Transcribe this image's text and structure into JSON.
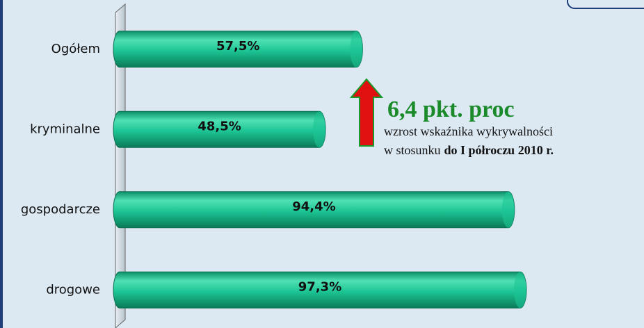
{
  "chart_data": {
    "type": "barh",
    "categories": [
      "Ogółem",
      "kryminalne",
      "gospodarcze",
      "drogowe"
    ],
    "values": [
      57.5,
      48.5,
      94.4,
      97.3
    ],
    "value_labels": [
      "57,5%",
      "48,5%",
      "94,4%",
      "97,3%"
    ],
    "color": "#1cc494",
    "xlim": [
      0,
      100
    ],
    "annotation": {
      "headline": "6,4 pkt. proc",
      "line1": "wzrost wskaźnika wykrywalności",
      "line2": "w stosunku",
      "line2_bold": "do I półroczu 2010 r."
    }
  }
}
